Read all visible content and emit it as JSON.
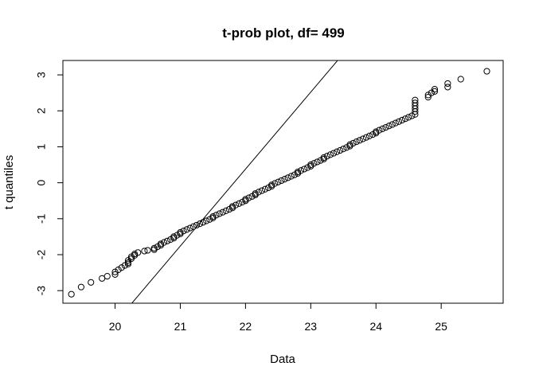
{
  "chart_data": {
    "type": "scatter",
    "title": "t-prob plot, df= 499",
    "xlabel": "Data",
    "ylabel": "t quantiles",
    "xlim": [
      19.2,
      25.95
    ],
    "ylim": [
      -3.35,
      3.4
    ],
    "xticks": [
      20,
      21,
      22,
      23,
      24,
      25
    ],
    "xtick_labels": [
      "20",
      "21",
      "22",
      "23",
      "24",
      "25"
    ],
    "yticks": [
      -3,
      -2,
      -1,
      0,
      1,
      2,
      3
    ],
    "ytick_labels": [
      "-3",
      "-2",
      "-1",
      "0",
      "1",
      "2",
      "3"
    ],
    "grid": false,
    "point_style": "open-circle",
    "reference_line": {
      "intercept": -46.7,
      "slope": 2.14
    },
    "points": [
      [
        19.33,
        -3.1
      ],
      [
        19.48,
        -2.9
      ],
      [
        19.63,
        -2.77
      ],
      [
        19.8,
        -2.66
      ],
      [
        19.88,
        -2.6
      ],
      [
        20.0,
        -2.55
      ],
      [
        20.0,
        -2.48
      ],
      [
        20.05,
        -2.42
      ],
      [
        20.1,
        -2.36
      ],
      [
        20.15,
        -2.3
      ],
      [
        20.2,
        -2.26
      ],
      [
        20.2,
        -2.22
      ],
      [
        20.2,
        -2.16
      ],
      [
        20.25,
        -2.11
      ],
      [
        20.25,
        -2.06
      ],
      [
        20.3,
        -2.02
      ],
      [
        20.3,
        -1.98
      ],
      [
        20.35,
        -1.94
      ],
      [
        20.45,
        -1.9
      ],
      [
        20.5,
        -1.88
      ],
      [
        20.6,
        -1.86
      ],
      [
        20.6,
        -1.82
      ],
      [
        20.65,
        -1.78
      ],
      [
        20.7,
        -1.74
      ],
      [
        20.7,
        -1.7
      ],
      [
        20.75,
        -1.66
      ],
      [
        20.8,
        -1.62
      ],
      [
        20.85,
        -1.58
      ],
      [
        20.9,
        -1.54
      ],
      [
        20.9,
        -1.5
      ],
      [
        20.95,
        -1.46
      ],
      [
        21.0,
        -1.42
      ],
      [
        21.0,
        -1.38
      ],
      [
        21.05,
        -1.34
      ],
      [
        21.1,
        -1.3
      ],
      [
        21.15,
        -1.26
      ],
      [
        21.2,
        -1.22
      ],
      [
        21.25,
        -1.18
      ],
      [
        21.3,
        -1.14
      ],
      [
        21.35,
        -1.1
      ],
      [
        21.4,
        -1.06
      ],
      [
        21.45,
        -1.02
      ],
      [
        21.5,
        -0.98
      ],
      [
        21.5,
        -0.94
      ],
      [
        21.55,
        -0.9
      ],
      [
        21.6,
        -0.86
      ],
      [
        21.65,
        -0.82
      ],
      [
        21.7,
        -0.78
      ],
      [
        21.75,
        -0.74
      ],
      [
        21.8,
        -0.7
      ],
      [
        21.8,
        -0.66
      ],
      [
        21.85,
        -0.62
      ],
      [
        21.9,
        -0.58
      ],
      [
        21.95,
        -0.54
      ],
      [
        22.0,
        -0.5
      ],
      [
        22.0,
        -0.46
      ],
      [
        22.05,
        -0.42
      ],
      [
        22.1,
        -0.38
      ],
      [
        22.15,
        -0.34
      ],
      [
        22.15,
        -0.3
      ],
      [
        22.2,
        -0.26
      ],
      [
        22.25,
        -0.22
      ],
      [
        22.3,
        -0.18
      ],
      [
        22.35,
        -0.14
      ],
      [
        22.4,
        -0.1
      ],
      [
        22.4,
        -0.06
      ],
      [
        22.45,
        -0.02
      ],
      [
        22.5,
        0.02
      ],
      [
        22.55,
        0.06
      ],
      [
        22.6,
        0.1
      ],
      [
        22.65,
        0.14
      ],
      [
        22.7,
        0.18
      ],
      [
        22.75,
        0.22
      ],
      [
        22.8,
        0.26
      ],
      [
        22.8,
        0.3
      ],
      [
        22.85,
        0.34
      ],
      [
        22.9,
        0.38
      ],
      [
        22.95,
        0.42
      ],
      [
        23.0,
        0.46
      ],
      [
        23.0,
        0.5
      ],
      [
        23.05,
        0.54
      ],
      [
        23.1,
        0.58
      ],
      [
        23.15,
        0.62
      ],
      [
        23.2,
        0.66
      ],
      [
        23.2,
        0.7
      ],
      [
        23.25,
        0.74
      ],
      [
        23.3,
        0.78
      ],
      [
        23.35,
        0.82
      ],
      [
        23.4,
        0.86
      ],
      [
        23.45,
        0.9
      ],
      [
        23.5,
        0.94
      ],
      [
        23.55,
        0.98
      ],
      [
        23.6,
        1.02
      ],
      [
        23.6,
        1.06
      ],
      [
        23.65,
        1.1
      ],
      [
        23.7,
        1.14
      ],
      [
        23.75,
        1.18
      ],
      [
        23.8,
        1.22
      ],
      [
        23.85,
        1.26
      ],
      [
        23.9,
        1.3
      ],
      [
        23.95,
        1.34
      ],
      [
        24.0,
        1.38
      ],
      [
        24.0,
        1.42
      ],
      [
        24.05,
        1.46
      ],
      [
        24.1,
        1.5
      ],
      [
        24.15,
        1.54
      ],
      [
        24.2,
        1.58
      ],
      [
        24.25,
        1.62
      ],
      [
        24.3,
        1.66
      ],
      [
        24.35,
        1.7
      ],
      [
        24.4,
        1.74
      ],
      [
        24.45,
        1.78
      ],
      [
        24.5,
        1.82
      ],
      [
        24.55,
        1.86
      ],
      [
        24.6,
        1.9
      ],
      [
        24.6,
        1.98
      ],
      [
        24.6,
        2.06
      ],
      [
        24.6,
        2.14
      ],
      [
        24.6,
        2.22
      ],
      [
        24.6,
        2.3
      ],
      [
        24.8,
        2.38
      ],
      [
        24.8,
        2.44
      ],
      [
        24.85,
        2.5
      ],
      [
        24.9,
        2.54
      ],
      [
        24.9,
        2.6
      ],
      [
        25.1,
        2.66
      ],
      [
        25.1,
        2.76
      ],
      [
        25.3,
        2.88
      ],
      [
        25.7,
        3.1
      ]
    ]
  }
}
